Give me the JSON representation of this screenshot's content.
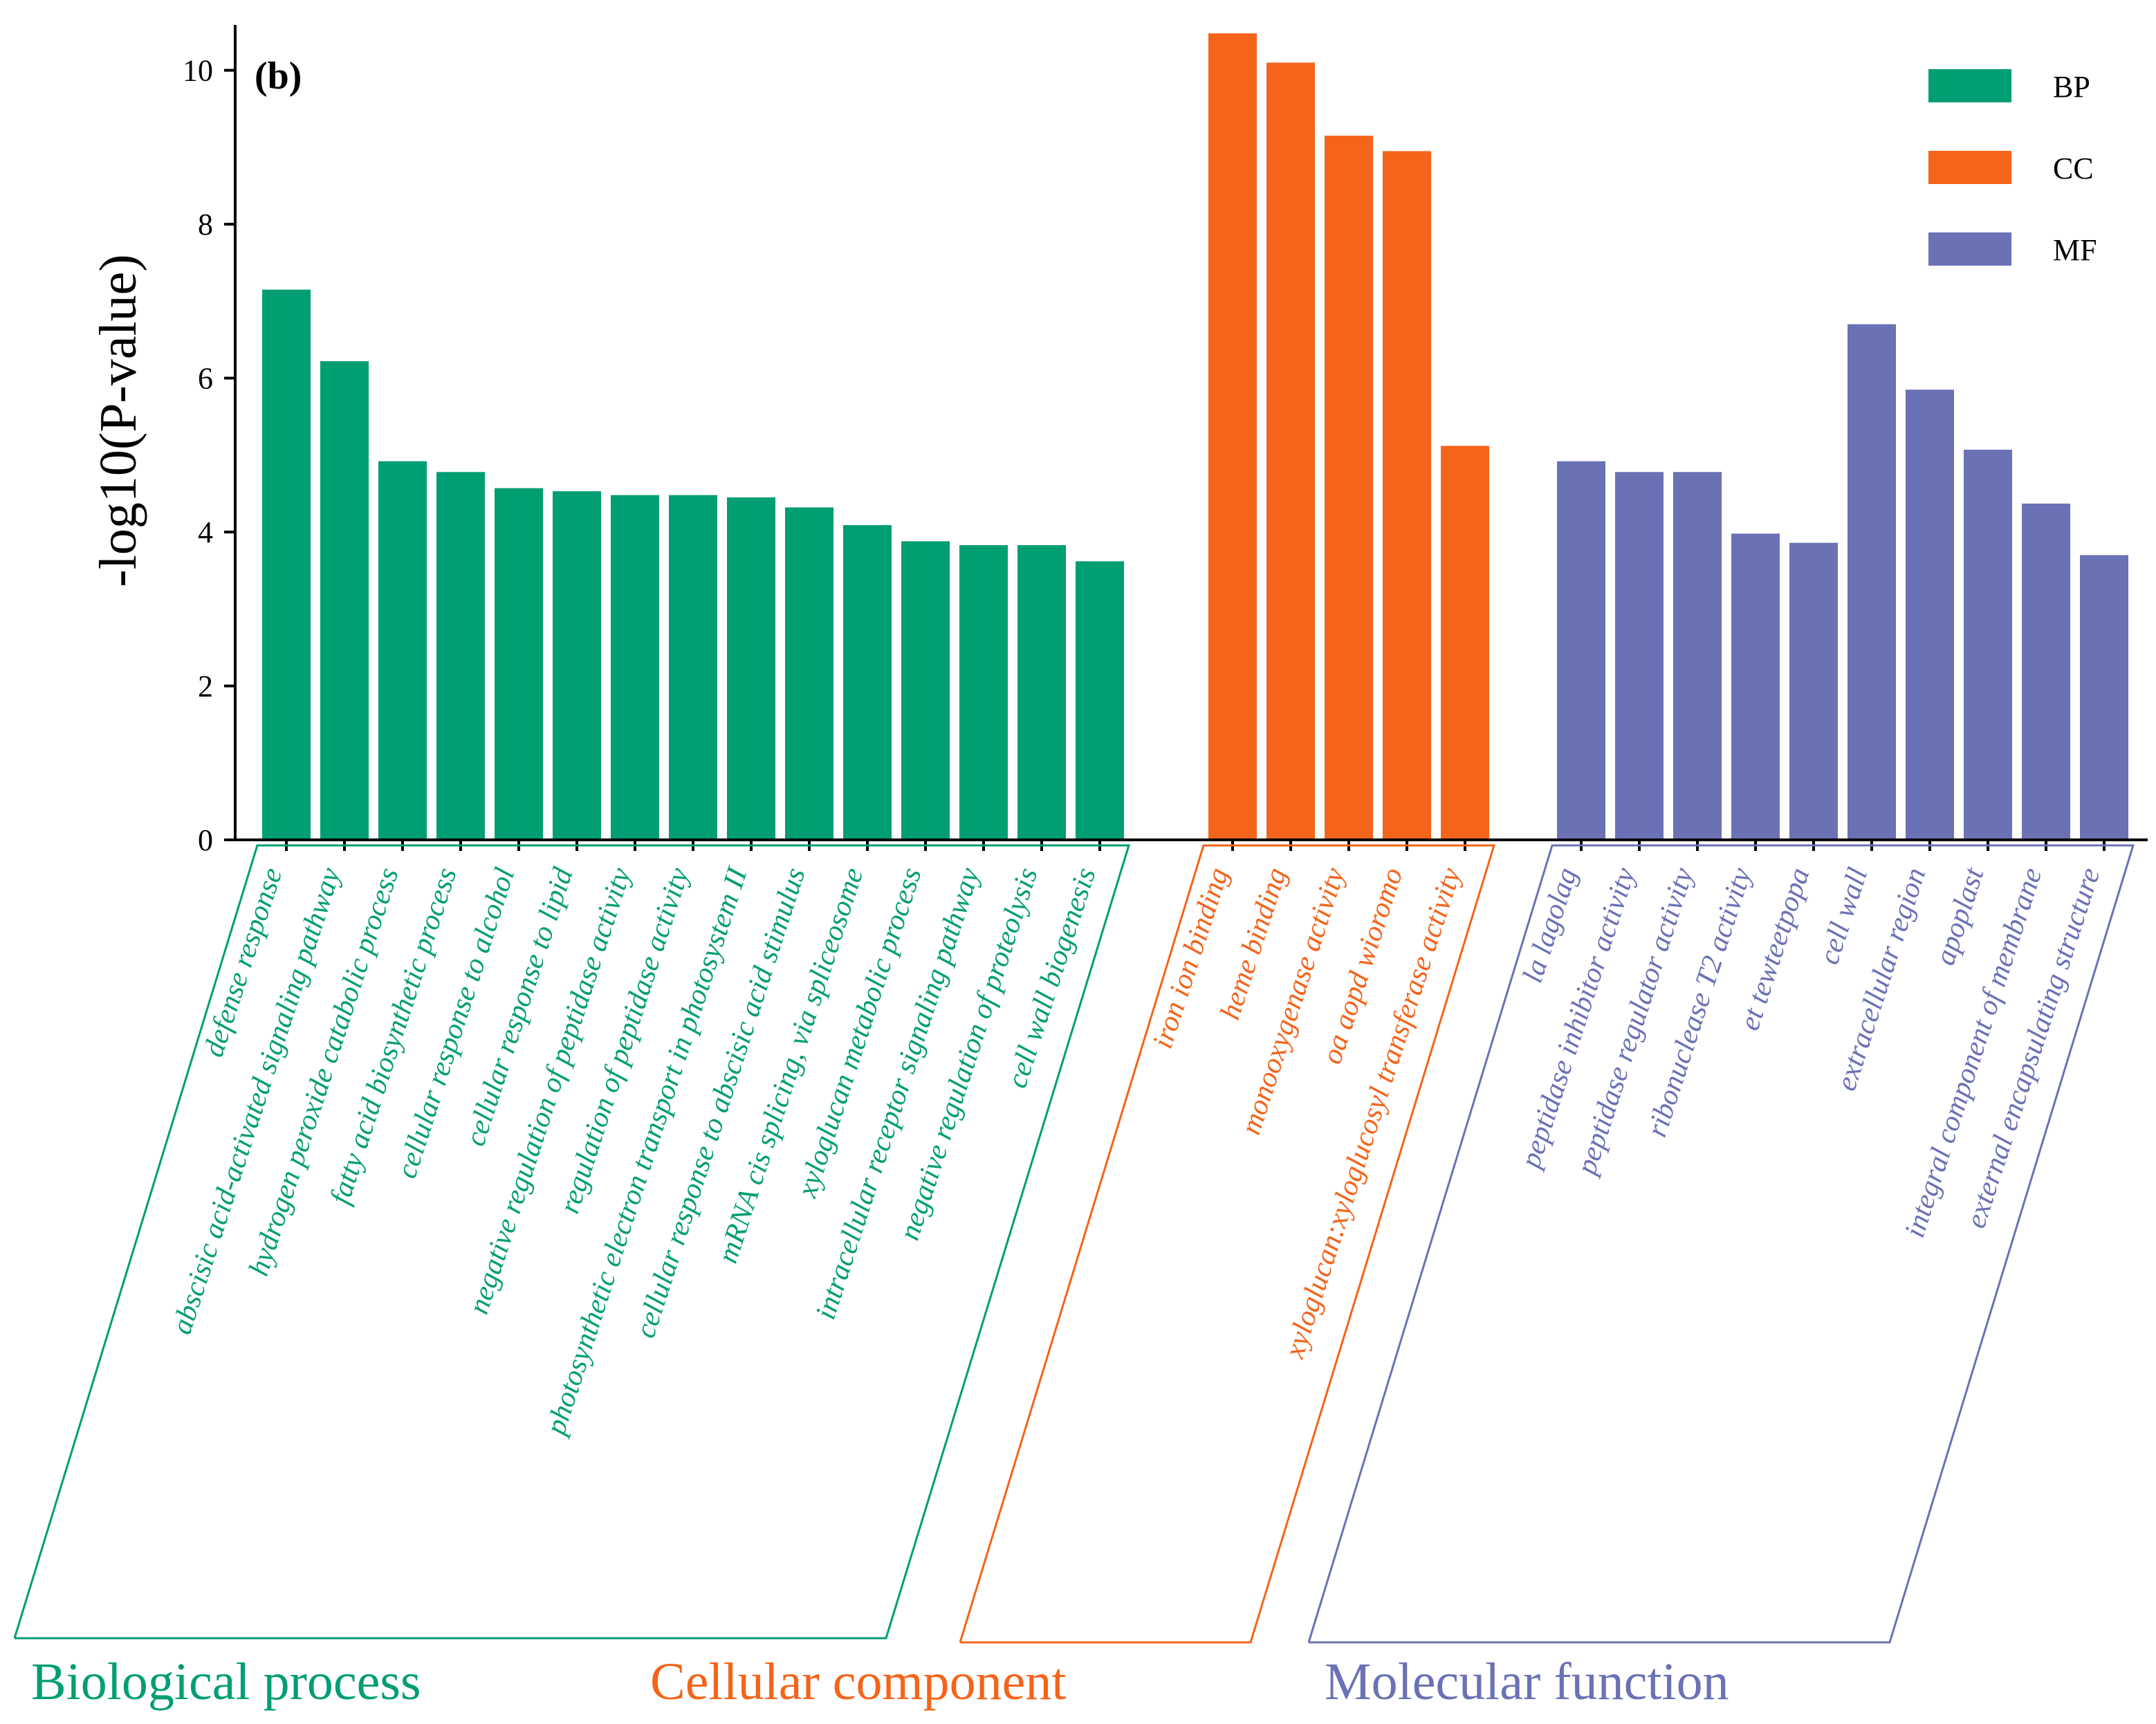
{
  "chart_data": {
    "type": "bar",
    "panel_label": "(b)",
    "ylabel": "-log10(P-value)",
    "xlabel": "",
    "ylim": [
      0,
      10.5
    ],
    "yticks": [
      0,
      2,
      4,
      6,
      8,
      10
    ],
    "legend": {
      "placement": "top-right",
      "entries": [
        {
          "key": "BP",
          "label": "BP",
          "color": "#009E73"
        },
        {
          "key": "CC",
          "label": "CC",
          "color": "#F4641A"
        },
        {
          "key": "MF",
          "label": "MF",
          "color": "#6A71B5"
        }
      ]
    },
    "groups": [
      {
        "key": "BP",
        "title": "Biological process",
        "color": "#009E73",
        "categories": [
          "defense response",
          "abscisic acid-activated signaling pathway",
          "hydrogen peroxide catabolic process",
          "fatty acid biosynthetic process",
          "cellular response to alcohol",
          "cellular response to lipid",
          "negative regulation of peptidase activity",
          "regulation of peptidase activity",
          "photosynthetic electron transport in photosystem II",
          "cellular response to abscisic acid stimulus",
          "mRNA cis splicing, via spliceosome",
          "xyloglucan metabolic process",
          "intracellular receptor signaling pathway",
          "negative regulation of proteolysis",
          "cell wall biogenesis"
        ],
        "values": [
          7.15,
          6.22,
          4.92,
          4.78,
          4.57,
          4.53,
          4.48,
          4.48,
          4.45,
          4.32,
          4.09,
          3.88,
          3.83,
          3.83,
          3.62
        ]
      },
      {
        "key": "CC",
        "title": "Cellular component",
        "color": "#F4641A",
        "categories": [
          "iron ion binding",
          "heme binding",
          "monooxygenase activity",
          "oa   aopd   wioromo",
          "xyloglucan:xyloglucosyl transferase activity"
        ],
        "values": [
          10.48,
          10.1,
          9.15,
          8.95,
          5.12
        ]
      },
      {
        "key": "MF",
        "title": "Molecular function",
        "color": "#6A71B5",
        "categories": [
          "la   lagolag",
          "peptidase inhibitor activity",
          "peptidase regulator activity",
          "ribonuclease T2 activity",
          "et   tewteetpopa",
          "cell wall",
          "extracellular region",
          "apoplast",
          "integral component of membrane",
          "external encapsulating structure"
        ],
        "values": [
          4.92,
          4.78,
          4.78,
          3.98,
          3.86,
          6.7,
          5.85,
          5.07,
          4.37,
          3.7
        ]
      }
    ]
  }
}
